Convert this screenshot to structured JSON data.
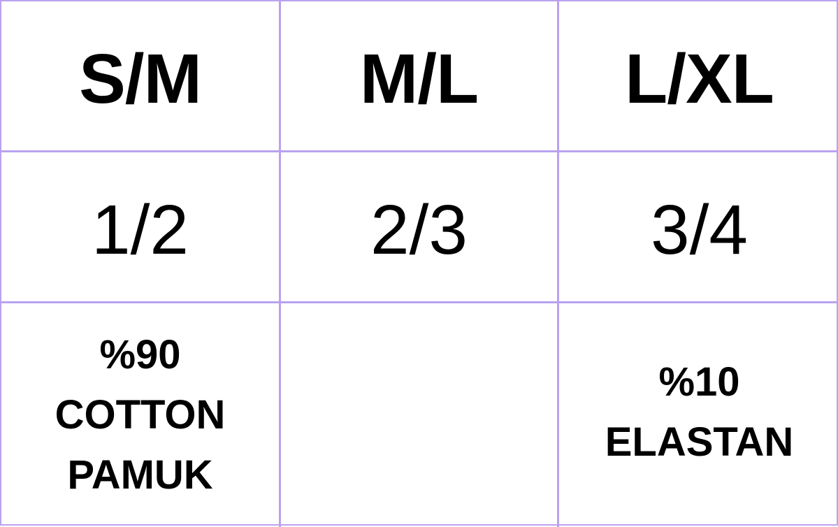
{
  "table": {
    "sizes": [
      "S/M",
      "M/L",
      "L/XL"
    ],
    "numbers": [
      "1/2",
      "2/3",
      "3/4"
    ],
    "materials": [
      [
        "%90",
        "COTTON",
        "PAMUK"
      ],
      [],
      [
        "%10",
        "ELASTAN"
      ]
    ]
  },
  "colors": {
    "border": "#b9a2f0",
    "text": "#000000"
  }
}
